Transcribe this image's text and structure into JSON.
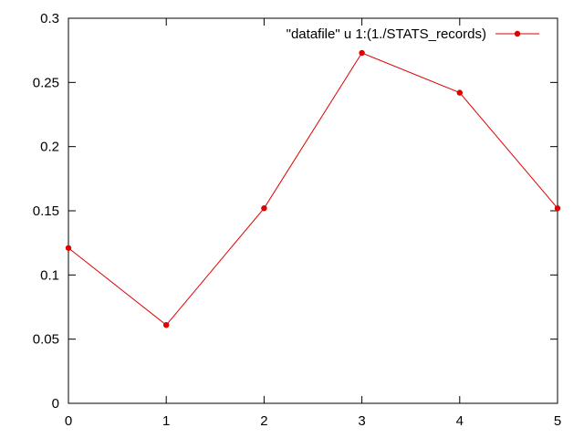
{
  "chart_data": {
    "type": "line",
    "title": "",
    "xlabel": "",
    "ylabel": "",
    "xlim": [
      0,
      5
    ],
    "ylim": [
      0,
      0.3
    ],
    "grid": false,
    "legend_placement": "top-right",
    "x_ticks": [
      "0",
      "1",
      "2",
      "3",
      "4",
      "5"
    ],
    "y_ticks": [
      "0",
      "0.05",
      "0.1",
      "0.15",
      "0.2",
      "0.25",
      "0.3"
    ],
    "series": [
      {
        "name": "\"datafile\" u 1:(1./STATS_records)",
        "color": "#e00000",
        "marker": "circle",
        "x": [
          0,
          1,
          2,
          3,
          4,
          5
        ],
        "y": [
          0.121,
          0.061,
          0.152,
          0.273,
          0.242,
          0.152
        ]
      }
    ]
  }
}
